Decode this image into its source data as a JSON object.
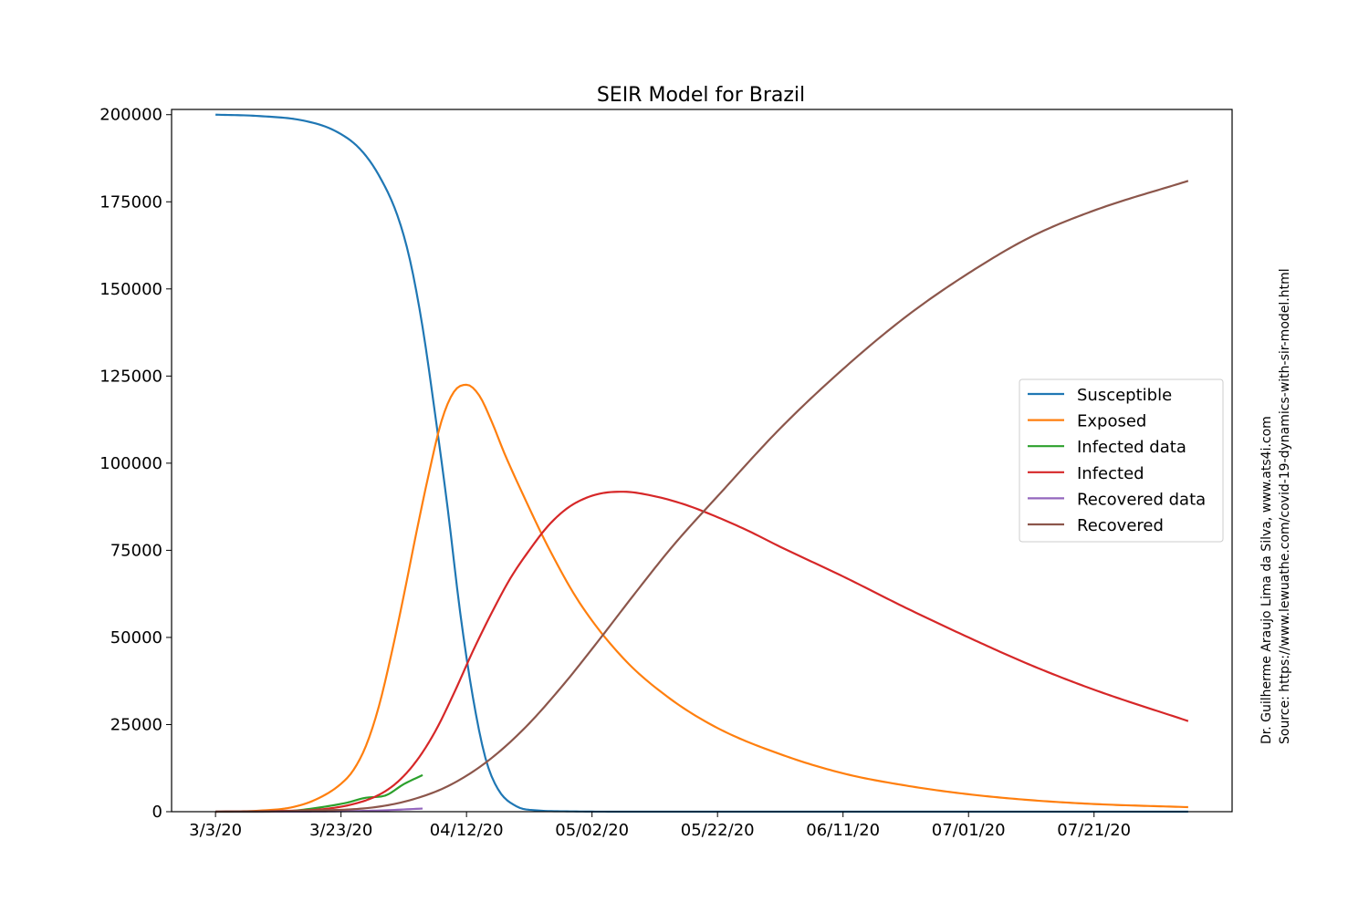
{
  "chart_data": {
    "type": "line",
    "title": "SEIR Model for Brazil",
    "xlabel": "",
    "ylabel": "",
    "x_start_date": "2020-03-03",
    "x_end_date": "2020-08-05",
    "xlim_dates": [
      "2020-02-25",
      "2020-08-12"
    ],
    "ylim": [
      0,
      201500
    ],
    "grid": false,
    "legend_position": "center-right",
    "x_ticks": [
      {
        "date": "2020-03-03",
        "label": "3/3/20"
      },
      {
        "date": "2020-03-23",
        "label": "3/23/20"
      },
      {
        "date": "2020-04-12",
        "label": "04/12/20"
      },
      {
        "date": "2020-05-02",
        "label": "05/02/20"
      },
      {
        "date": "2020-05-22",
        "label": "05/22/20"
      },
      {
        "date": "2020-06-11",
        "label": "06/11/20"
      },
      {
        "date": "2020-07-01",
        "label": "07/01/20"
      },
      {
        "date": "2020-07-21",
        "label": "07/21/20"
      }
    ],
    "y_ticks": [
      {
        "value": 0,
        "label": "0"
      },
      {
        "value": 25000,
        "label": "25000"
      },
      {
        "value": 50000,
        "label": "50000"
      },
      {
        "value": 75000,
        "label": "75000"
      },
      {
        "value": 100000,
        "label": "100000"
      },
      {
        "value": 125000,
        "label": "125000"
      },
      {
        "value": 150000,
        "label": "150000"
      },
      {
        "value": 175000,
        "label": "175000"
      },
      {
        "value": 200000,
        "label": "200000"
      }
    ],
    "series": [
      {
        "name": "Susceptible",
        "color": "#1f77b4",
        "x": [
          "2020-03-03",
          "2020-03-10",
          "2020-03-17",
          "2020-03-22",
          "2020-03-26",
          "2020-03-29",
          "2020-04-01",
          "2020-04-03",
          "2020-04-05",
          "2020-04-07",
          "2020-04-09",
          "2020-04-11",
          "2020-04-13",
          "2020-04-15",
          "2020-04-17",
          "2020-04-20",
          "2020-04-23",
          "2020-04-28",
          "2020-05-09",
          "2020-06-01",
          "2020-07-01",
          "2020-08-05"
        ],
        "y": [
          200000,
          199600,
          198300,
          195400,
          190200,
          182700,
          171000,
          158200,
          139000,
          114000,
          87000,
          57000,
          33000,
          15500,
          6500,
          1500,
          400,
          100,
          0,
          0,
          0,
          0
        ]
      },
      {
        "name": "Exposed",
        "color": "#ff7f0e",
        "x": [
          "2020-03-03",
          "2020-03-10",
          "2020-03-15",
          "2020-03-19",
          "2020-03-23",
          "2020-03-25",
          "2020-03-27",
          "2020-03-29",
          "2020-03-31",
          "2020-04-02",
          "2020-04-04",
          "2020-04-06",
          "2020-04-08",
          "2020-04-10",
          "2020-04-12",
          "2020-04-14",
          "2020-04-16",
          "2020-04-18",
          "2020-04-21",
          "2020-04-25",
          "2020-04-30",
          "2020-05-07",
          "2020-05-14",
          "2020-05-22",
          "2020-06-01",
          "2020-06-11",
          "2020-06-21",
          "2020-07-01",
          "2020-07-11",
          "2020-07-21",
          "2020-08-05"
        ],
        "y": [
          0,
          300,
          1200,
          3500,
          8000,
          12000,
          19000,
          30000,
          45000,
          62000,
          80000,
          97000,
          112000,
          120500,
          122500,
          119500,
          112000,
          103000,
          91000,
          76000,
          60000,
          44000,
          33000,
          24000,
          16500,
          11000,
          7500,
          5000,
          3300,
          2200,
          1300
        ]
      },
      {
        "name": "Infected data",
        "color": "#2ca02c",
        "x": [
          "2020-03-03",
          "2020-03-10",
          "2020-03-15",
          "2020-03-18",
          "2020-03-21",
          "2020-03-24",
          "2020-03-27",
          "2020-03-30",
          "2020-04-02",
          "2020-04-05"
        ],
        "y": [
          0,
          0,
          200,
          800,
          1600,
          2600,
          4000,
          4600,
          7900,
          10500
        ]
      },
      {
        "name": "Infected",
        "color": "#d62728",
        "x": [
          "2020-03-03",
          "2020-03-13",
          "2020-03-20",
          "2020-03-25",
          "2020-03-29",
          "2020-04-01",
          "2020-04-04",
          "2020-04-07",
          "2020-04-10",
          "2020-04-13",
          "2020-04-16",
          "2020-04-19",
          "2020-04-22",
          "2020-04-25",
          "2020-04-28",
          "2020-05-01",
          "2020-05-04",
          "2020-05-07",
          "2020-05-12",
          "2020-05-17",
          "2020-05-22",
          "2020-05-27",
          "2020-06-01",
          "2020-06-11",
          "2020-06-21",
          "2020-07-01",
          "2020-07-11",
          "2020-07-21",
          "2020-08-05"
        ],
        "y": [
          0,
          200,
          700,
          2200,
          4800,
          8500,
          14500,
          23000,
          34000,
          46000,
          57000,
          67000,
          75000,
          82000,
          87000,
          90000,
          91500,
          91800,
          90500,
          88000,
          84500,
          80500,
          76000,
          67500,
          58500,
          50000,
          42000,
          35000,
          26000
        ]
      },
      {
        "name": "Recovered data",
        "color": "#9467bd",
        "x": [
          "2020-03-03",
          "2020-03-18",
          "2020-03-24",
          "2020-03-30",
          "2020-04-05"
        ],
        "y": [
          0,
          40,
          150,
          400,
          900
        ]
      },
      {
        "name": "Recovered",
        "color": "#8c564b",
        "x": [
          "2020-03-03",
          "2020-03-18",
          "2020-03-28",
          "2020-04-03",
          "2020-04-09",
          "2020-04-15",
          "2020-04-21",
          "2020-04-27",
          "2020-05-03",
          "2020-05-09",
          "2020-05-15",
          "2020-05-22",
          "2020-06-01",
          "2020-06-11",
          "2020-06-21",
          "2020-07-01",
          "2020-07-11",
          "2020-07-21",
          "2020-08-05"
        ],
        "y": [
          0,
          300,
          1200,
          3300,
          7300,
          14000,
          23500,
          35500,
          49000,
          63000,
          76500,
          90500,
          110000,
          127000,
          142000,
          154500,
          165000,
          172500,
          181000
        ]
      }
    ]
  },
  "side_note": {
    "line1": "Dr. Guilherme Araujo Lima da Silva, www.ats4i.com",
    "line2": "Source: https://www.lewuathe.com/covid-19-dynamics-with-sir-model.html"
  }
}
